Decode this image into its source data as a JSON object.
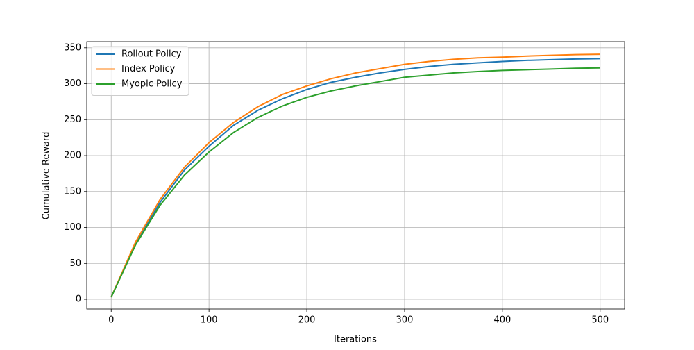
{
  "chart_data": {
    "type": "line",
    "xlabel": "Iterations",
    "ylabel": "Cumulative Reward",
    "x": [
      0,
      25,
      50,
      75,
      100,
      125,
      150,
      175,
      200,
      225,
      250,
      275,
      300,
      325,
      350,
      375,
      400,
      425,
      450,
      475,
      500
    ],
    "series": [
      {
        "name": "Rollout Policy",
        "color": "#1f77b4",
        "values": [
          3,
          77,
          135,
          180,
          213,
          242,
          263,
          279,
          292,
          302,
          309,
          315,
          320,
          324,
          327,
          329,
          331,
          332.5,
          333.5,
          334.5,
          335
        ]
      },
      {
        "name": "Index Policy",
        "color": "#ff7f0e",
        "values": [
          3,
          80,
          139,
          184,
          218,
          246,
          268,
          285,
          297,
          307,
          315,
          321,
          327,
          331,
          334,
          336,
          337,
          338.5,
          339.5,
          340.5,
          341
        ]
      },
      {
        "name": "Myopic Policy",
        "color": "#2ca02c",
        "values": [
          3,
          76,
          131,
          173,
          205,
          232,
          253,
          269,
          281,
          290,
          297,
          303,
          309,
          312,
          315,
          317,
          318.5,
          319.5,
          320.5,
          321.5,
          322
        ]
      }
    ],
    "xlim": [
      -25,
      525
    ],
    "xticks": [
      0,
      100,
      200,
      300,
      400,
      500
    ],
    "ylim": [
      -13.5,
      358.5
    ],
    "yticks": [
      0,
      50,
      100,
      150,
      200,
      250,
      300,
      350
    ],
    "grid": true,
    "legend": "upper left"
  }
}
